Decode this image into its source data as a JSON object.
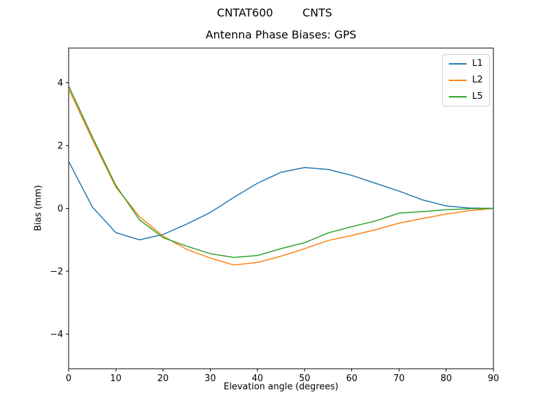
{
  "suptitle": {
    "left": "CNTAT600",
    "right": "CNTS"
  },
  "chart_data": {
    "type": "line",
    "title": "Antenna Phase Biases: GPS",
    "xlabel": "Elevation angle (degrees)",
    "ylabel": "Bias (mm)",
    "xlim": [
      0,
      90
    ],
    "ylim": [
      -5.1,
      5.1
    ],
    "xticks": [
      0,
      10,
      20,
      30,
      40,
      50,
      60,
      70,
      80,
      90
    ],
    "yticks": [
      -4,
      -2,
      0,
      2,
      4
    ],
    "grid": false,
    "legend_position": "upper right",
    "x": [
      0,
      5,
      10,
      15,
      20,
      25,
      30,
      35,
      40,
      45,
      50,
      55,
      60,
      65,
      70,
      75,
      80,
      85,
      90
    ],
    "series": [
      {
        "name": "L1",
        "color": "#1f77b4",
        "values": [
          1.5,
          0.05,
          -0.77,
          -1.0,
          -0.83,
          -0.5,
          -0.13,
          0.35,
          0.8,
          1.15,
          1.3,
          1.24,
          1.05,
          0.8,
          0.55,
          0.27,
          0.08,
          0.01,
          0.0
        ]
      },
      {
        "name": "L2",
        "color": "#ff7f0e",
        "values": [
          3.8,
          2.2,
          0.68,
          -0.26,
          -0.88,
          -1.3,
          -1.58,
          -1.8,
          -1.72,
          -1.52,
          -1.28,
          -1.02,
          -0.86,
          -0.68,
          -0.47,
          -0.32,
          -0.18,
          -0.07,
          0.0
        ]
      },
      {
        "name": "L5",
        "color": "#2ca02c",
        "values": [
          3.9,
          2.28,
          0.73,
          -0.36,
          -0.93,
          -1.2,
          -1.44,
          -1.56,
          -1.5,
          -1.28,
          -1.09,
          -0.78,
          -0.58,
          -0.4,
          -0.15,
          -0.1,
          -0.04,
          -0.01,
          0.0
        ]
      }
    ]
  }
}
